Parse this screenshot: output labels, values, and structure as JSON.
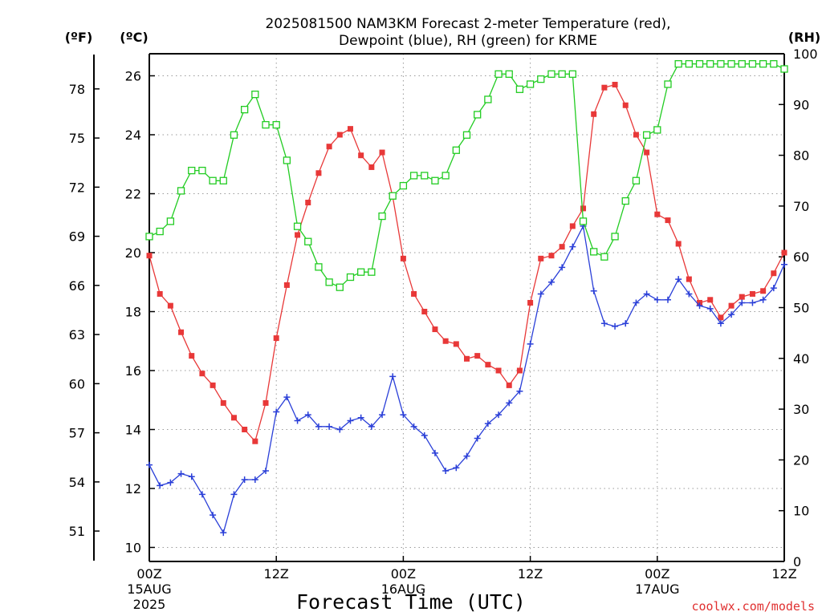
{
  "chart_data": {
    "type": "line",
    "title_lines": [
      "2025081500 NAM3KM Forecast 2-meter Temperature (red),",
      "Dewpoint (blue), RH (green) for KRME"
    ],
    "xlabel": "Forecast Time (UTC)",
    "credit": "coolwx.com/models",
    "units": {
      "fahrenheit": "(ºF)",
      "celsius": "(ºC)",
      "rh": "(RH)"
    },
    "xlim": [
      0,
      60
    ],
    "ylim_c": [
      9.5,
      26.8
    ],
    "ylim_rh": [
      0,
      100
    ],
    "x_ticks": [
      {
        "x": 0,
        "lines": [
          "00Z",
          "15AUG",
          "2025"
        ]
      },
      {
        "x": 12,
        "lines": [
          "12Z"
        ]
      },
      {
        "x": 24,
        "lines": [
          "00Z",
          "16AUG"
        ]
      },
      {
        "x": 36,
        "lines": [
          "12Z"
        ]
      },
      {
        "x": 48,
        "lines": [
          "00Z",
          "17AUG"
        ]
      },
      {
        "x": 60,
        "lines": [
          "12Z"
        ]
      }
    ],
    "celsius_ticks": [
      10,
      12,
      14,
      16,
      18,
      20,
      22,
      24,
      26
    ],
    "fahrenheit_ticks": [
      51,
      54,
      57,
      60,
      63,
      66,
      69,
      72,
      75,
      78
    ],
    "rh_ticks": [
      0,
      10,
      20,
      30,
      40,
      50,
      60,
      70,
      80,
      90,
      100
    ],
    "series": [
      {
        "name": "Temperature",
        "color": "#e83838",
        "marker": "filled-square",
        "axis": "celsius",
        "values": [
          19.9,
          18.6,
          18.2,
          17.3,
          16.5,
          15.9,
          15.5,
          14.9,
          14.4,
          14.0,
          13.6,
          14.9,
          17.1,
          18.9,
          20.6,
          21.7,
          22.7,
          23.6,
          24.0,
          24.2,
          23.3,
          22.9,
          23.4,
          21.9,
          19.8,
          18.6,
          18.0,
          17.4,
          17.0,
          16.9,
          16.4,
          16.5,
          16.2,
          16.0,
          15.5,
          16.0,
          18.3,
          19.8,
          19.9,
          20.2,
          20.9,
          21.5,
          24.7,
          25.6,
          25.7,
          25.0,
          24.0,
          23.4,
          21.3,
          21.1,
          20.3,
          19.1,
          18.3,
          18.4,
          17.8,
          18.2,
          18.5,
          18.6,
          18.7,
          19.3,
          20.0
        ]
      },
      {
        "name": "Dewpoint",
        "color": "#2a3fd8",
        "marker": "plus",
        "axis": "celsius",
        "values": [
          12.8,
          12.1,
          12.2,
          12.5,
          12.4,
          11.8,
          11.1,
          10.5,
          11.8,
          12.3,
          12.3,
          12.6,
          14.6,
          15.1,
          14.3,
          14.5,
          14.1,
          14.1,
          14.0,
          14.3,
          14.4,
          14.1,
          14.5,
          15.8,
          14.5,
          14.1,
          13.8,
          13.2,
          12.6,
          12.7,
          13.1,
          13.7,
          14.2,
          14.5,
          14.9,
          15.3,
          16.9,
          18.6,
          19.0,
          19.5,
          20.2,
          20.9,
          18.7,
          17.6,
          17.5,
          17.6,
          18.3,
          18.6,
          18.4,
          18.4,
          19.1,
          18.6,
          18.2,
          18.1,
          17.6,
          17.9,
          18.3,
          18.3,
          18.4,
          18.8,
          19.6
        ]
      },
      {
        "name": "RH",
        "color": "#22cc22",
        "marker": "open-square",
        "axis": "rh",
        "values": [
          64,
          65,
          67,
          73,
          77,
          77,
          75,
          75,
          84,
          89,
          92,
          86,
          86,
          79,
          66,
          63,
          58,
          55,
          54,
          56,
          57,
          57,
          68,
          72,
          74,
          76,
          76,
          75,
          76,
          81,
          84,
          88,
          91,
          96,
          96,
          93,
          94,
          95,
          96,
          96,
          96,
          67,
          61,
          60,
          64,
          71,
          75,
          84,
          85,
          94,
          98,
          98,
          98,
          98,
          98,
          98,
          98,
          98,
          98,
          98,
          97
        ]
      }
    ],
    "grid": true,
    "legend": "none (series identified in title)"
  }
}
